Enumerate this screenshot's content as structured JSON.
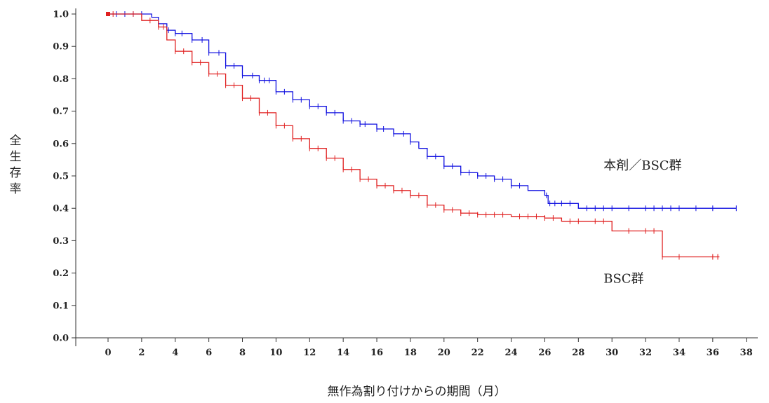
{
  "chart_data": {
    "type": "line",
    "subtype": "kaplan-meier",
    "xlabel": "無作為割り付けからの期間（月）",
    "ylabel": "全生存率",
    "xlim": [
      0,
      38
    ],
    "ylim": [
      0,
      1.0
    ],
    "xticks": [
      0,
      2,
      4,
      6,
      8,
      10,
      12,
      14,
      16,
      18,
      20,
      22,
      24,
      26,
      28,
      30,
      32,
      34,
      36,
      38
    ],
    "yticks": [
      0.0,
      0.1,
      0.2,
      0.3,
      0.4,
      0.5,
      0.6,
      0.7,
      0.8,
      0.9,
      1.0
    ],
    "ytick_labels": [
      "0.0",
      "0.1",
      "0.2",
      "0.3",
      "0.4",
      "0.5",
      "0.6",
      "0.7",
      "0.8",
      "0.9",
      "1.0"
    ],
    "grid": false,
    "series": [
      {
        "name": "本剤／BSC群",
        "color": "#1010e0",
        "points": [
          [
            0,
            1.0
          ],
          [
            2.6,
            0.99
          ],
          [
            3,
            0.97
          ],
          [
            3.5,
            0.95
          ],
          [
            4,
            0.94
          ],
          [
            5,
            0.92
          ],
          [
            6,
            0.88
          ],
          [
            7,
            0.84
          ],
          [
            8,
            0.81
          ],
          [
            9,
            0.795
          ],
          [
            10,
            0.76
          ],
          [
            11,
            0.735
          ],
          [
            12,
            0.715
          ],
          [
            13,
            0.695
          ],
          [
            14,
            0.67
          ],
          [
            15,
            0.66
          ],
          [
            16,
            0.645
          ],
          [
            17,
            0.63
          ],
          [
            18,
            0.605
          ],
          [
            18.5,
            0.585
          ],
          [
            19,
            0.56
          ],
          [
            20,
            0.53
          ],
          [
            21,
            0.51
          ],
          [
            22,
            0.5
          ],
          [
            23,
            0.49
          ],
          [
            24,
            0.47
          ],
          [
            25,
            0.455
          ],
          [
            26,
            0.44
          ],
          [
            26.2,
            0.415
          ],
          [
            28,
            0.4
          ],
          [
            37.4,
            0.4
          ]
        ],
        "censors": [
          0.5,
          1,
          1.5,
          2,
          3.6,
          4,
          4.4,
          5,
          5.6,
          6,
          6.6,
          7,
          7.5,
          8,
          8.6,
          9,
          9.3,
          9.6,
          10,
          10.5,
          11,
          11.5,
          12,
          12.5,
          13,
          13.5,
          14,
          14.5,
          15,
          15.3,
          16,
          16.4,
          17,
          17.6,
          18,
          19,
          19.5,
          20,
          20.5,
          21,
          21.5,
          22,
          22.5,
          23,
          23.5,
          24,
          24.5,
          26.1,
          26.3,
          26.6,
          27,
          27.5,
          28.5,
          29,
          29.5,
          30,
          31,
          32,
          32.5,
          33,
          33.5,
          34,
          35,
          36,
          37.4
        ]
      },
      {
        "name": "BSC群",
        "color": "#e02020",
        "points": [
          [
            0,
            1.0
          ],
          [
            2,
            0.98
          ],
          [
            3,
            0.96
          ],
          [
            3.5,
            0.92
          ],
          [
            4,
            0.885
          ],
          [
            5,
            0.85
          ],
          [
            6,
            0.815
          ],
          [
            7,
            0.78
          ],
          [
            8,
            0.74
          ],
          [
            9,
            0.695
          ],
          [
            10,
            0.655
          ],
          [
            11,
            0.615
          ],
          [
            12,
            0.585
          ],
          [
            13,
            0.555
          ],
          [
            14,
            0.52
          ],
          [
            15,
            0.49
          ],
          [
            16,
            0.47
          ],
          [
            17,
            0.455
          ],
          [
            18,
            0.44
          ],
          [
            19,
            0.41
          ],
          [
            20,
            0.395
          ],
          [
            21,
            0.385
          ],
          [
            22,
            0.38
          ],
          [
            24,
            0.375
          ],
          [
            26,
            0.37
          ],
          [
            27,
            0.36
          ],
          [
            30,
            0.33
          ],
          [
            33,
            0.25
          ],
          [
            36.4,
            0.25
          ]
        ],
        "censors": [
          0.3,
          1.5,
          2.5,
          3,
          3.3,
          4,
          4.5,
          5,
          5.5,
          6,
          6.5,
          7,
          7.5,
          8,
          8.5,
          9,
          9.5,
          10,
          10.5,
          11,
          11.5,
          12,
          12.5,
          13,
          13.5,
          14,
          14.5,
          15,
          15.5,
          16,
          16.5,
          17,
          17.5,
          18,
          18.5,
          19,
          19.5,
          20,
          20.5,
          21,
          21.5,
          22,
          22.5,
          23,
          23.5,
          24.5,
          25,
          25.5,
          26,
          26.5,
          27.5,
          28,
          29,
          29.5,
          31,
          32,
          32.5,
          33,
          34,
          36,
          36.3
        ]
      }
    ],
    "labels": [
      {
        "text": "本剤／BSC群",
        "x": 29.5,
        "y": 0.52,
        "series": 0
      },
      {
        "text": "BSC群",
        "x": 29.5,
        "y": 0.17,
        "series": 1
      }
    ]
  }
}
